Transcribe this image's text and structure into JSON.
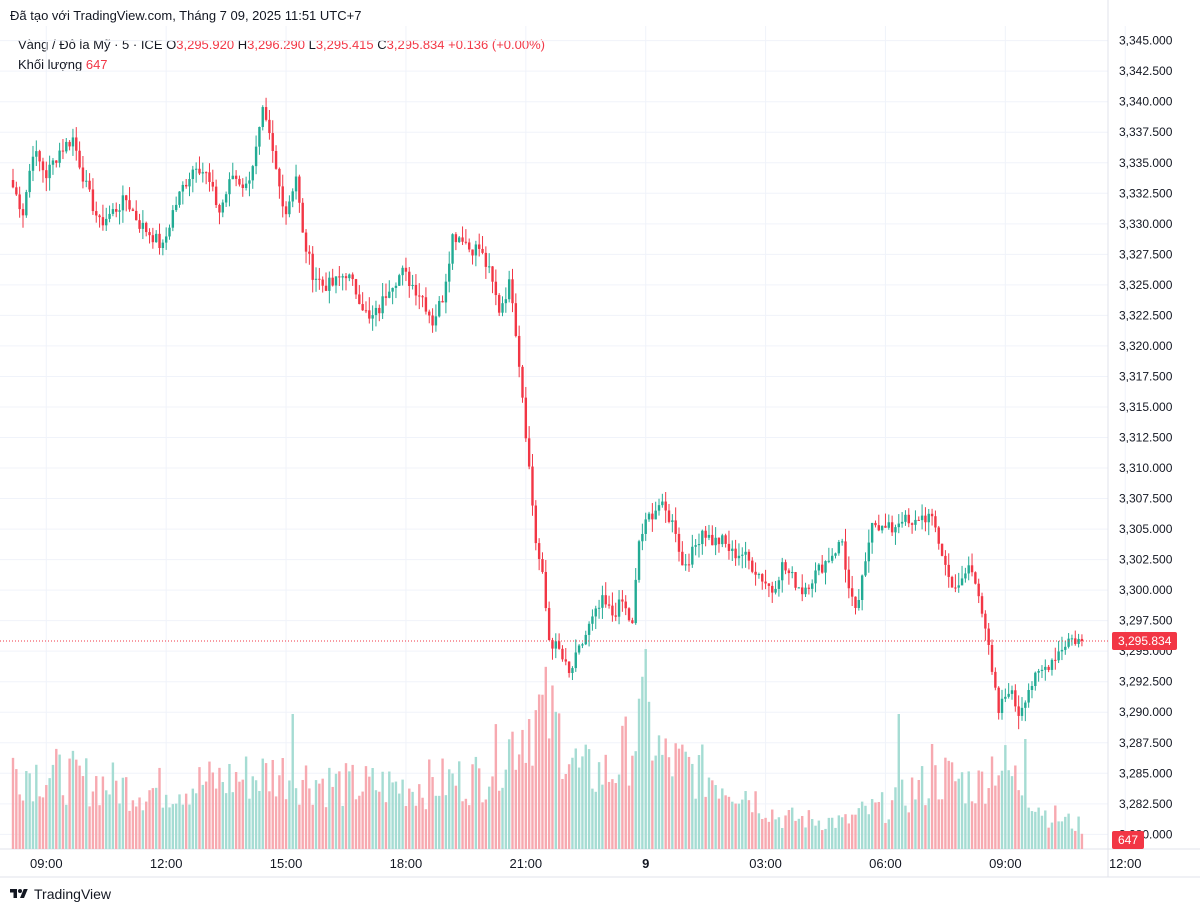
{
  "header": {
    "created_with": "Đã tạo với TradingView.com, Tháng 7 09, 2025 11:51 UTC+7"
  },
  "legend": {
    "symbol": "Vàng / Đô la Mỹ · 5 · ICE",
    "open_label": "O",
    "open": "3,295.920",
    "high_label": "H",
    "high": "3,296.290",
    "low_label": "L",
    "low": "3,295.415",
    "close_label": "C",
    "close": "3,295.834",
    "change": "+0.136 (+0.00%)",
    "volume_label": "Khối lượng",
    "volume": "647"
  },
  "footer": {
    "brand": "TradingView"
  },
  "colors": {
    "up": "#22ab94",
    "down": "#f23645",
    "up_vol": "#a5dcd3",
    "down_vol": "#f7a9b0",
    "grid": "#f0f3fa"
  },
  "chart_data": {
    "type": "candlestick",
    "y_range": [
      3278.8,
      3346.2
    ],
    "y_ticks": [
      3345,
      3342.5,
      3340,
      3337.5,
      3335,
      3332.5,
      3330,
      3327.5,
      3325,
      3322.5,
      3320,
      3317.5,
      3315,
      3312.5,
      3310,
      3307.5,
      3305,
      3302.5,
      3300,
      3297.5,
      3295,
      3292.5,
      3290,
      3287.5,
      3285,
      3282.5,
      3280
    ],
    "y_tick_labels": [
      "3,345.000",
      "3,342.500",
      "3,340.000",
      "3,337.500",
      "3,335.000",
      "3,332.500",
      "3,330.000",
      "3,327.500",
      "3,325.000",
      "3,322.500",
      "3,320.000",
      "3,317.500",
      "3,315.000",
      "3,312.500",
      "3,310.000",
      "3,307.500",
      "3,305.000",
      "3,302.500",
      "3,300.000",
      "3,297.500",
      "3,295.000",
      "3,292.500",
      "3,290.000",
      "3,287.500",
      "3,285.000",
      "3,282.500",
      "3,280.000"
    ],
    "x_ticks": [
      {
        "label": "09:00",
        "bar": 10,
        "bold": false
      },
      {
        "label": "12:00",
        "bar": 46,
        "bold": false
      },
      {
        "label": "15:00",
        "bar": 82,
        "bold": false
      },
      {
        "label": "18:00",
        "bar": 118,
        "bold": false
      },
      {
        "label": "21:00",
        "bar": 154,
        "bold": false
      },
      {
        "label": "9",
        "bar": 190,
        "bold": true
      },
      {
        "label": "03:00",
        "bar": 226,
        "bold": false
      },
      {
        "label": "06:00",
        "bar": 262,
        "bold": false
      },
      {
        "label": "09:00",
        "bar": 298,
        "bold": false
      },
      {
        "label": "12:00",
        "bar": 334,
        "bold": false
      }
    ],
    "anchors": [
      [
        0,
        3333
      ],
      [
        3,
        3331
      ],
      [
        6,
        3336
      ],
      [
        10,
        3334
      ],
      [
        14,
        3336
      ],
      [
        18,
        3337
      ],
      [
        22,
        3333
      ],
      [
        26,
        3330
      ],
      [
        30,
        3331
      ],
      [
        34,
        3332
      ],
      [
        38,
        3330
      ],
      [
        42,
        3329
      ],
      [
        45,
        3328
      ],
      [
        48,
        3331
      ],
      [
        51,
        3333
      ],
      [
        55,
        3335
      ],
      [
        58,
        3334
      ],
      [
        62,
        3331
      ],
      [
        66,
        3334
      ],
      [
        70,
        3333
      ],
      [
        73,
        3336
      ],
      [
        75,
        3339
      ],
      [
        77,
        3337
      ],
      [
        80,
        3333
      ],
      [
        82,
        3331
      ],
      [
        85,
        3334
      ],
      [
        87,
        3329
      ],
      [
        90,
        3326
      ],
      [
        93,
        3325
      ],
      [
        96,
        3325
      ],
      [
        100,
        3326
      ],
      [
        104,
        3324
      ],
      [
        107,
        3322
      ],
      [
        110,
        3323
      ],
      [
        113,
        3325
      ],
      [
        117,
        3326
      ],
      [
        120,
        3325
      ],
      [
        123,
        3324
      ],
      [
        126,
        3322
      ],
      [
        129,
        3324
      ],
      [
        132,
        3329
      ],
      [
        135,
        3329
      ],
      [
        137,
        3328
      ],
      [
        140,
        3328
      ],
      [
        143,
        3326
      ],
      [
        146,
        3323
      ],
      [
        149,
        3325
      ],
      [
        150,
        3324
      ],
      [
        153,
        3316
      ],
      [
        155,
        3310
      ],
      [
        157,
        3304
      ],
      [
        159,
        3301
      ],
      [
        161,
        3296
      ],
      [
        164,
        3295
      ],
      [
        167,
        3293
      ],
      [
        170,
        3295
      ],
      [
        173,
        3297
      ],
      [
        177,
        3299
      ],
      [
        180,
        3298
      ],
      [
        183,
        3299
      ],
      [
        186,
        3297
      ],
      [
        188,
        3304
      ],
      [
        191,
        3306
      ],
      [
        194,
        3307
      ],
      [
        197,
        3306
      ],
      [
        199,
        3305
      ],
      [
        201,
        3302
      ],
      [
        204,
        3303
      ],
      [
        207,
        3305
      ],
      [
        210,
        3304
      ],
      [
        213,
        3304
      ],
      [
        216,
        3303
      ],
      [
        219,
        3303
      ],
      [
        222,
        3302
      ],
      [
        225,
        3301
      ],
      [
        228,
        3300
      ],
      [
        231,
        3302
      ],
      [
        234,
        3301
      ],
      [
        237,
        3300
      ],
      [
        240,
        3301
      ],
      [
        243,
        3302
      ],
      [
        246,
        3303
      ],
      [
        249,
        3304
      ],
      [
        251,
        3300
      ],
      [
        253,
        3298
      ],
      [
        256,
        3302
      ],
      [
        258,
        3306
      ],
      [
        261,
        3305
      ],
      [
        264,
        3305
      ],
      [
        267,
        3306
      ],
      [
        270,
        3305
      ],
      [
        272,
        3306
      ],
      [
        275,
        3306
      ],
      [
        277,
        3305
      ],
      [
        279,
        3303
      ],
      [
        281,
        3301
      ],
      [
        284,
        3300
      ],
      [
        287,
        3302
      ],
      [
        290,
        3300
      ],
      [
        292,
        3297
      ],
      [
        294,
        3293
      ],
      [
        296,
        3290
      ],
      [
        299,
        3292
      ],
      [
        302,
        3290
      ],
      [
        305,
        3292
      ],
      [
        308,
        3293
      ],
      [
        311,
        3294
      ],
      [
        314,
        3295
      ],
      [
        317,
        3296
      ],
      [
        320,
        3295.9
      ],
      [
        321,
        3295.834
      ]
    ],
    "volume_profile": [
      [
        0,
        90
      ],
      [
        40,
        65
      ],
      [
        60,
        75
      ],
      [
        80,
        85
      ],
      [
        100,
        70
      ],
      [
        120,
        70
      ],
      [
        140,
        80
      ],
      [
        150,
        120
      ],
      [
        155,
        145
      ],
      [
        160,
        150
      ],
      [
        165,
        125
      ],
      [
        170,
        85
      ],
      [
        180,
        85
      ],
      [
        185,
        115
      ],
      [
        190,
        145
      ],
      [
        195,
        100
      ],
      [
        210,
        80
      ],
      [
        220,
        65
      ],
      [
        230,
        35
      ],
      [
        250,
        30
      ],
      [
        255,
        40
      ],
      [
        265,
        50
      ],
      [
        270,
        65
      ],
      [
        280,
        80
      ],
      [
        290,
        70
      ],
      [
        295,
        100
      ],
      [
        300,
        80
      ],
      [
        305,
        65
      ],
      [
        310,
        40
      ],
      [
        321,
        25
      ]
    ],
    "volume_spikes": [
      [
        84,
        135
      ],
      [
        190,
        200
      ],
      [
        266,
        135
      ],
      [
        276,
        105
      ],
      [
        304,
        110
      ]
    ],
    "volume_range": [
      0,
      5000
    ],
    "last_price": 3295.834,
    "last_price_label": "3,295.834",
    "last_volume": 647,
    "last_volume_label": "647",
    "bars": 322
  }
}
